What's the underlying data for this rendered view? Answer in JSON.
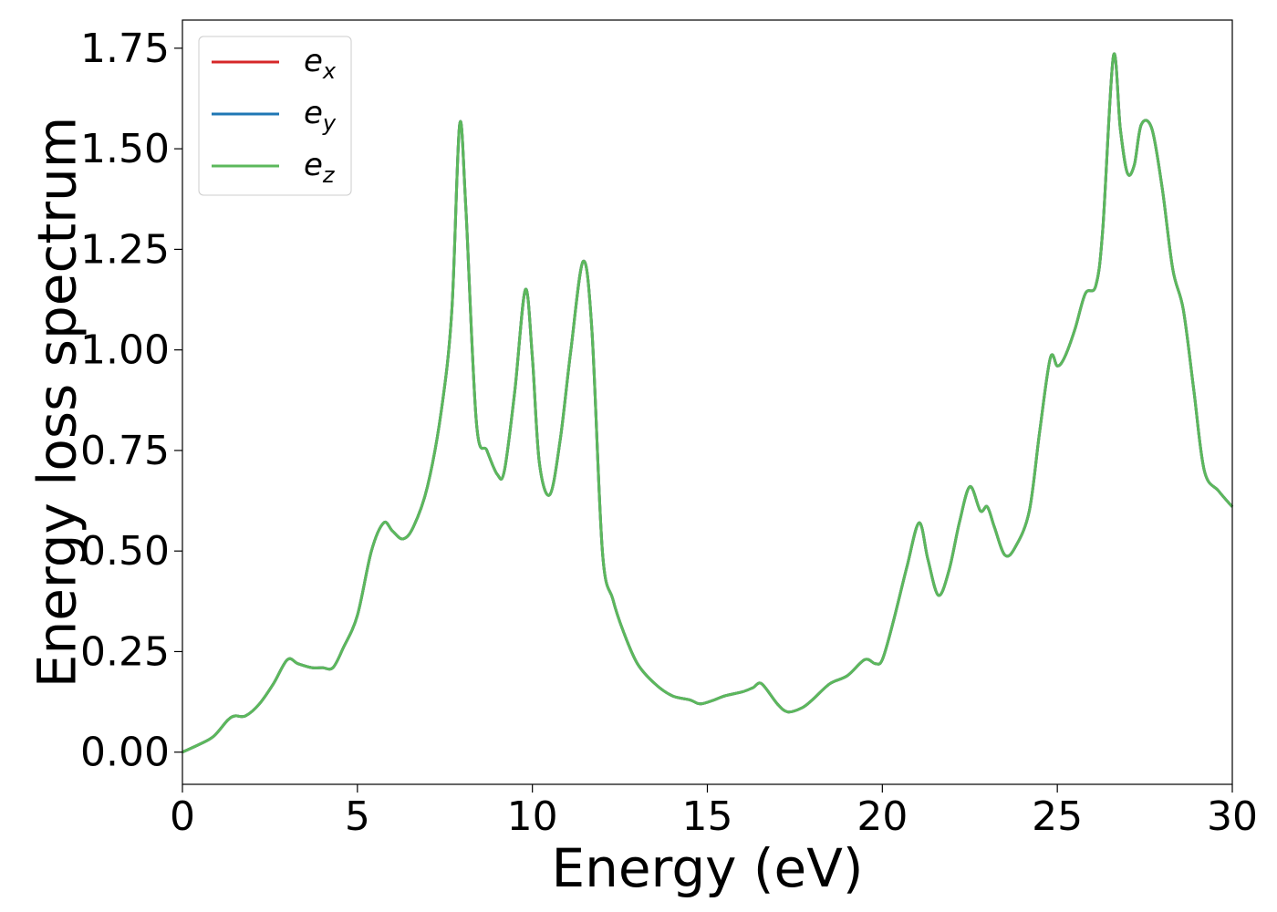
{
  "chart_data": {
    "type": "line",
    "title": "",
    "xlabel": "Energy (eV)",
    "ylabel": "Energy loss spectrum",
    "xlim": [
      0,
      30
    ],
    "ylim": [
      -0.08,
      1.82
    ],
    "xticks": [
      0,
      5,
      10,
      15,
      20,
      25,
      30
    ],
    "xtick_labels": [
      "0",
      "5",
      "10",
      "15",
      "20",
      "25",
      "30"
    ],
    "yticks": [
      0.0,
      0.25,
      0.5,
      0.75,
      1.0,
      1.25,
      1.5,
      1.75
    ],
    "ytick_labels": [
      "0.00",
      "0.25",
      "0.50",
      "0.75",
      "1.00",
      "1.25",
      "1.50",
      "1.75"
    ],
    "grid": false,
    "legend_position": "top-left",
    "x": [
      0,
      0.5,
      0.9,
      1.3,
      1.5,
      1.8,
      2.2,
      2.6,
      3.0,
      3.3,
      3.7,
      4.0,
      4.3,
      4.6,
      5.0,
      5.4,
      5.75,
      6.0,
      6.3,
      6.6,
      7.0,
      7.4,
      7.7,
      7.92,
      8.1,
      8.4,
      8.7,
      9.0,
      9.2,
      9.5,
      9.8,
      10.0,
      10.2,
      10.5,
      10.8,
      11.1,
      11.45,
      11.7,
      12.0,
      12.3,
      12.6,
      13.0,
      13.5,
      14.0,
      14.5,
      14.8,
      15.2,
      15.5,
      16.0,
      16.3,
      16.55,
      17.0,
      17.3,
      17.7,
      18.0,
      18.5,
      19.0,
      19.5,
      19.8,
      20.0,
      20.3,
      20.7,
      21.05,
      21.3,
      21.6,
      21.9,
      22.2,
      22.5,
      22.8,
      23.0,
      23.2,
      23.5,
      23.8,
      24.2,
      24.5,
      24.8,
      25.0,
      25.2,
      25.5,
      25.8,
      26.1,
      26.3,
      26.6,
      26.8,
      27.0,
      27.2,
      27.4,
      27.7,
      28.0,
      28.3,
      28.6,
      28.9,
      29.2,
      29.6,
      30.0
    ],
    "series": [
      {
        "name": "e_x",
        "color": "#d62728",
        "values": [
          0.0,
          0.02,
          0.04,
          0.08,
          0.09,
          0.09,
          0.12,
          0.17,
          0.23,
          0.22,
          0.21,
          0.21,
          0.21,
          0.26,
          0.34,
          0.5,
          0.57,
          0.55,
          0.53,
          0.56,
          0.66,
          0.85,
          1.1,
          1.56,
          1.35,
          0.82,
          0.75,
          0.69,
          0.7,
          0.9,
          1.15,
          0.98,
          0.72,
          0.64,
          0.78,
          1.0,
          1.22,
          1.05,
          0.5,
          0.38,
          0.3,
          0.22,
          0.17,
          0.14,
          0.13,
          0.12,
          0.13,
          0.14,
          0.15,
          0.16,
          0.17,
          0.12,
          0.1,
          0.11,
          0.13,
          0.17,
          0.19,
          0.23,
          0.22,
          0.23,
          0.32,
          0.46,
          0.57,
          0.48,
          0.39,
          0.45,
          0.57,
          0.66,
          0.6,
          0.61,
          0.56,
          0.49,
          0.51,
          0.6,
          0.8,
          0.98,
          0.96,
          0.98,
          1.05,
          1.14,
          1.16,
          1.3,
          1.73,
          1.55,
          1.44,
          1.46,
          1.56,
          1.55,
          1.4,
          1.2,
          1.1,
          0.9,
          0.7,
          0.65,
          0.61
        ]
      },
      {
        "name": "e_y",
        "color": "#1f77b4",
        "values": [
          0.0,
          0.02,
          0.04,
          0.08,
          0.09,
          0.09,
          0.12,
          0.17,
          0.23,
          0.22,
          0.21,
          0.21,
          0.21,
          0.26,
          0.34,
          0.5,
          0.57,
          0.55,
          0.53,
          0.56,
          0.66,
          0.85,
          1.1,
          1.56,
          1.35,
          0.82,
          0.75,
          0.69,
          0.7,
          0.9,
          1.15,
          0.98,
          0.72,
          0.64,
          0.78,
          1.0,
          1.22,
          1.05,
          0.5,
          0.38,
          0.3,
          0.22,
          0.17,
          0.14,
          0.13,
          0.12,
          0.13,
          0.14,
          0.15,
          0.16,
          0.17,
          0.12,
          0.1,
          0.11,
          0.13,
          0.17,
          0.19,
          0.23,
          0.22,
          0.23,
          0.32,
          0.46,
          0.57,
          0.48,
          0.39,
          0.45,
          0.57,
          0.66,
          0.6,
          0.61,
          0.56,
          0.49,
          0.51,
          0.6,
          0.8,
          0.98,
          0.96,
          0.98,
          1.05,
          1.14,
          1.16,
          1.3,
          1.73,
          1.55,
          1.44,
          1.46,
          1.56,
          1.55,
          1.4,
          1.2,
          1.1,
          0.9,
          0.7,
          0.65,
          0.61
        ]
      },
      {
        "name": "e_z",
        "color": "#5cb85c",
        "values": [
          0.0,
          0.02,
          0.04,
          0.08,
          0.09,
          0.09,
          0.12,
          0.17,
          0.23,
          0.22,
          0.21,
          0.21,
          0.21,
          0.26,
          0.34,
          0.5,
          0.57,
          0.55,
          0.53,
          0.56,
          0.66,
          0.85,
          1.1,
          1.56,
          1.35,
          0.82,
          0.75,
          0.69,
          0.7,
          0.9,
          1.15,
          0.98,
          0.72,
          0.64,
          0.78,
          1.0,
          1.22,
          1.05,
          0.5,
          0.38,
          0.3,
          0.22,
          0.17,
          0.14,
          0.13,
          0.12,
          0.13,
          0.14,
          0.15,
          0.16,
          0.17,
          0.12,
          0.1,
          0.11,
          0.13,
          0.17,
          0.19,
          0.23,
          0.22,
          0.23,
          0.32,
          0.46,
          0.57,
          0.48,
          0.39,
          0.45,
          0.57,
          0.66,
          0.6,
          0.61,
          0.56,
          0.49,
          0.51,
          0.6,
          0.8,
          0.98,
          0.96,
          0.98,
          1.05,
          1.14,
          1.16,
          1.3,
          1.73,
          1.55,
          1.44,
          1.46,
          1.56,
          1.55,
          1.4,
          1.2,
          1.1,
          0.9,
          0.7,
          0.65,
          0.61
        ]
      }
    ],
    "legend": [
      {
        "base": "e",
        "sub": "x",
        "color": "#d62728"
      },
      {
        "base": "e",
        "sub": "y",
        "color": "#1f77b4"
      },
      {
        "base": "e",
        "sub": "z",
        "color": "#5cb85c"
      }
    ]
  }
}
